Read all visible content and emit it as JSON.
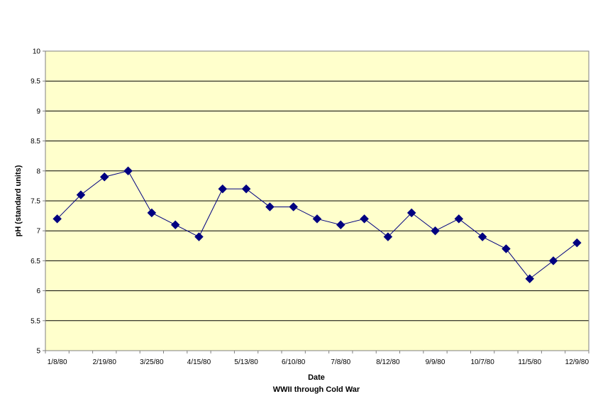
{
  "chart_data": {
    "type": "line",
    "title": "",
    "xlabel": "Date",
    "subtitle": "WWII through Cold War",
    "ylabel": "pH (standard units)",
    "ylim": [
      5,
      10
    ],
    "y_ticks": [
      "5",
      "5.5",
      "6",
      "6.5",
      "7",
      "7.5",
      "8",
      "8.5",
      "9",
      "9.5",
      "10"
    ],
    "x_tick_labels": [
      "1/8/80",
      "2/19/80",
      "3/25/80",
      "4/15/80",
      "5/13/80",
      "6/10/80",
      "7/8/80",
      "8/12/80",
      "9/9/80",
      "10/7/80",
      "11/5/80",
      "12/9/80"
    ],
    "grid": true,
    "plot_background": "#FFFFCC",
    "series": [
      {
        "color": "#000080",
        "marker": "diamond",
        "values": [
          7.2,
          7.6,
          7.9,
          8.0,
          7.3,
          7.1,
          6.9,
          7.7,
          7.7,
          7.4,
          7.4,
          7.2,
          7.1,
          7.2,
          6.9,
          7.3,
          7.0,
          7.2,
          6.9,
          6.7,
          6.2,
          6.5,
          6.8
        ]
      }
    ]
  }
}
